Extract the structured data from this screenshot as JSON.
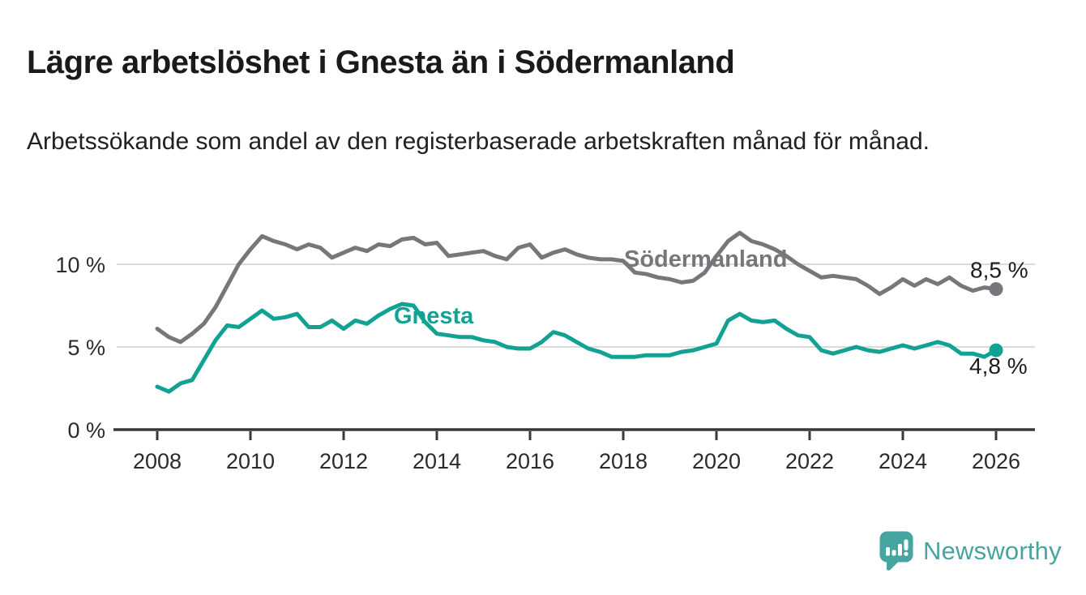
{
  "chart_data": {
    "type": "line",
    "title": "Lägre arbetslöshet i Gnesta än i Södermanland",
    "subtitle": "Arbetssökande som andel av den registerbaserade arbetskraften månad för månad.",
    "unit": "%",
    "grid": "horizontal-only",
    "legend_position": "inline-labels-on-lines",
    "xlim": [
      2007.0,
      2026.85
    ],
    "ylim": [
      0,
      12.8
    ],
    "x_ticks": [
      {
        "value": 2008,
        "label": "2008"
      },
      {
        "value": 2010,
        "label": "2010"
      },
      {
        "value": 2012,
        "label": "2012"
      },
      {
        "value": 2014,
        "label": "2014"
      },
      {
        "value": 2016,
        "label": "2016"
      },
      {
        "value": 2018,
        "label": "2018"
      },
      {
        "value": 2020,
        "label": "2020"
      },
      {
        "value": 2022,
        "label": "2022"
      },
      {
        "value": 2024,
        "label": "2024"
      },
      {
        "value": 2026,
        "label": "2026"
      }
    ],
    "y_ticks": [
      {
        "value": 0,
        "label": "0 %"
      },
      {
        "value": 5,
        "label": "5 %"
      },
      {
        "value": 10,
        "label": "10 %"
      }
    ],
    "series": [
      {
        "name": "Södermanland",
        "color": "#77777b",
        "x_start": 2008.0,
        "x_step": 0.25,
        "end_label": "8,5 %",
        "last_value": 8.5,
        "values": [
          6.1,
          5.6,
          5.3,
          5.8,
          6.4,
          7.4,
          8.7,
          10.0,
          10.9,
          11.7,
          11.4,
          11.2,
          10.9,
          11.2,
          11.0,
          10.4,
          10.7,
          11.0,
          10.8,
          11.2,
          11.1,
          11.5,
          11.6,
          11.2,
          11.3,
          10.5,
          10.6,
          10.7,
          10.8,
          10.5,
          10.3,
          11.0,
          11.2,
          10.4,
          10.7,
          10.9,
          10.6,
          10.4,
          10.3,
          10.3,
          10.2,
          9.5,
          9.4,
          9.2,
          9.1,
          8.9,
          9.0,
          9.5,
          10.5,
          11.4,
          11.9,
          11.4,
          11.2,
          10.9,
          10.5,
          10.0,
          9.6,
          9.2,
          9.3,
          9.2,
          9.1,
          8.7,
          8.2,
          8.6,
          9.1,
          8.7,
          9.1,
          8.8,
          9.2,
          8.7,
          8.4,
          8.6,
          8.5
        ]
      },
      {
        "name": "Gnesta",
        "color": "#12a294",
        "x_start": 2008.0,
        "x_step": 0.25,
        "end_label": "4,8 %",
        "last_value": 4.8,
        "values": [
          2.6,
          2.3,
          2.8,
          3.0,
          4.2,
          5.4,
          6.3,
          6.2,
          6.7,
          7.2,
          6.7,
          6.8,
          7.0,
          6.2,
          6.2,
          6.6,
          6.1,
          6.6,
          6.4,
          6.9,
          7.3,
          7.6,
          7.5,
          6.5,
          5.8,
          5.7,
          5.6,
          5.6,
          5.4,
          5.3,
          5.0,
          4.9,
          4.9,
          5.3,
          5.9,
          5.7,
          5.3,
          4.9,
          4.7,
          4.4,
          4.4,
          4.4,
          4.5,
          4.5,
          4.5,
          4.7,
          4.8,
          5.0,
          5.2,
          6.6,
          7.0,
          6.6,
          6.5,
          6.6,
          6.1,
          5.7,
          5.6,
          4.8,
          4.6,
          4.8,
          5.0,
          4.8,
          4.7,
          4.9,
          5.1,
          4.9,
          5.1,
          5.3,
          5.1,
          4.6,
          4.6,
          4.4,
          4.8
        ]
      }
    ]
  },
  "logo": {
    "text": "Newsworthy",
    "icon": "newsworthy-bubble-chart-icon",
    "color": "#46a5a0"
  },
  "style_colors": {
    "axis": "#38383c",
    "grid": "#dbdbdb",
    "title": "#1a1a1a",
    "end_label": "#1d1d1d"
  }
}
